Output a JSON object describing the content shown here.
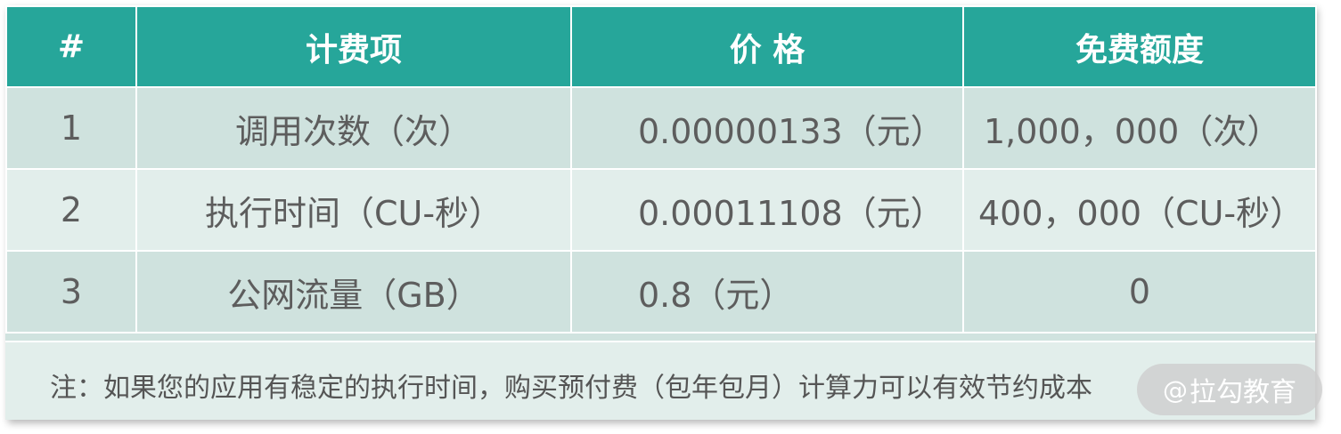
{
  "table": {
    "headers": [
      "#",
      "计费项",
      "价 格",
      "免费额度"
    ],
    "rows": [
      {
        "num": "1",
        "item": "调用次数（次）",
        "price": "0.00000133（元）",
        "free": "1,000，000（次）"
      },
      {
        "num": "2",
        "item": "执行时间（CU-秒）",
        "price": "0.00011108（元）",
        "free": "400，000（CU-秒）"
      },
      {
        "num": "3",
        "item": "公网流量（GB）",
        "price": "0.8（元）",
        "free": "0"
      }
    ]
  },
  "note": "注：如果您的应用有稳定的执行时间，购买预付费（包年包月）计算力可以有效节约成本",
  "watermark": {
    "at": "@",
    "text": "拉勾教育"
  },
  "colors": {
    "header_bg": "#26a69a",
    "row_light": "#e2eeeb",
    "row_dark": "#cfe2de",
    "text": "#5d5d5d"
  }
}
